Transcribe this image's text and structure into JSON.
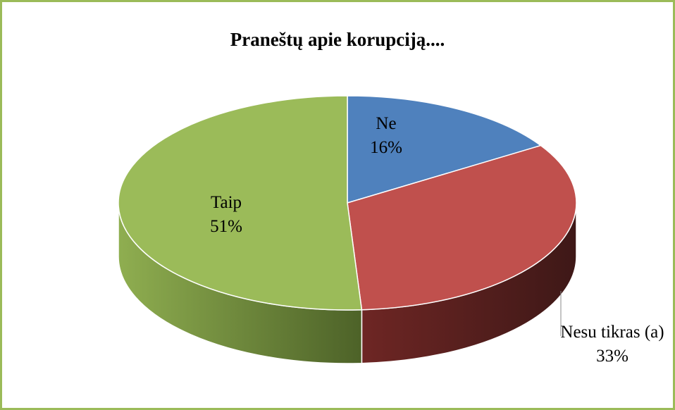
{
  "chart_data": {
    "type": "pie",
    "title": "Praneštų apie korupciją....",
    "categories": [
      "Ne",
      "Nesu tikras (a)",
      "Taip"
    ],
    "values": [
      16,
      33,
      51
    ],
    "value_labels": [
      "16%",
      "33%",
      "51%"
    ],
    "colors": [
      "#4f81bd",
      "#c0504d",
      "#9bbb59"
    ]
  }
}
